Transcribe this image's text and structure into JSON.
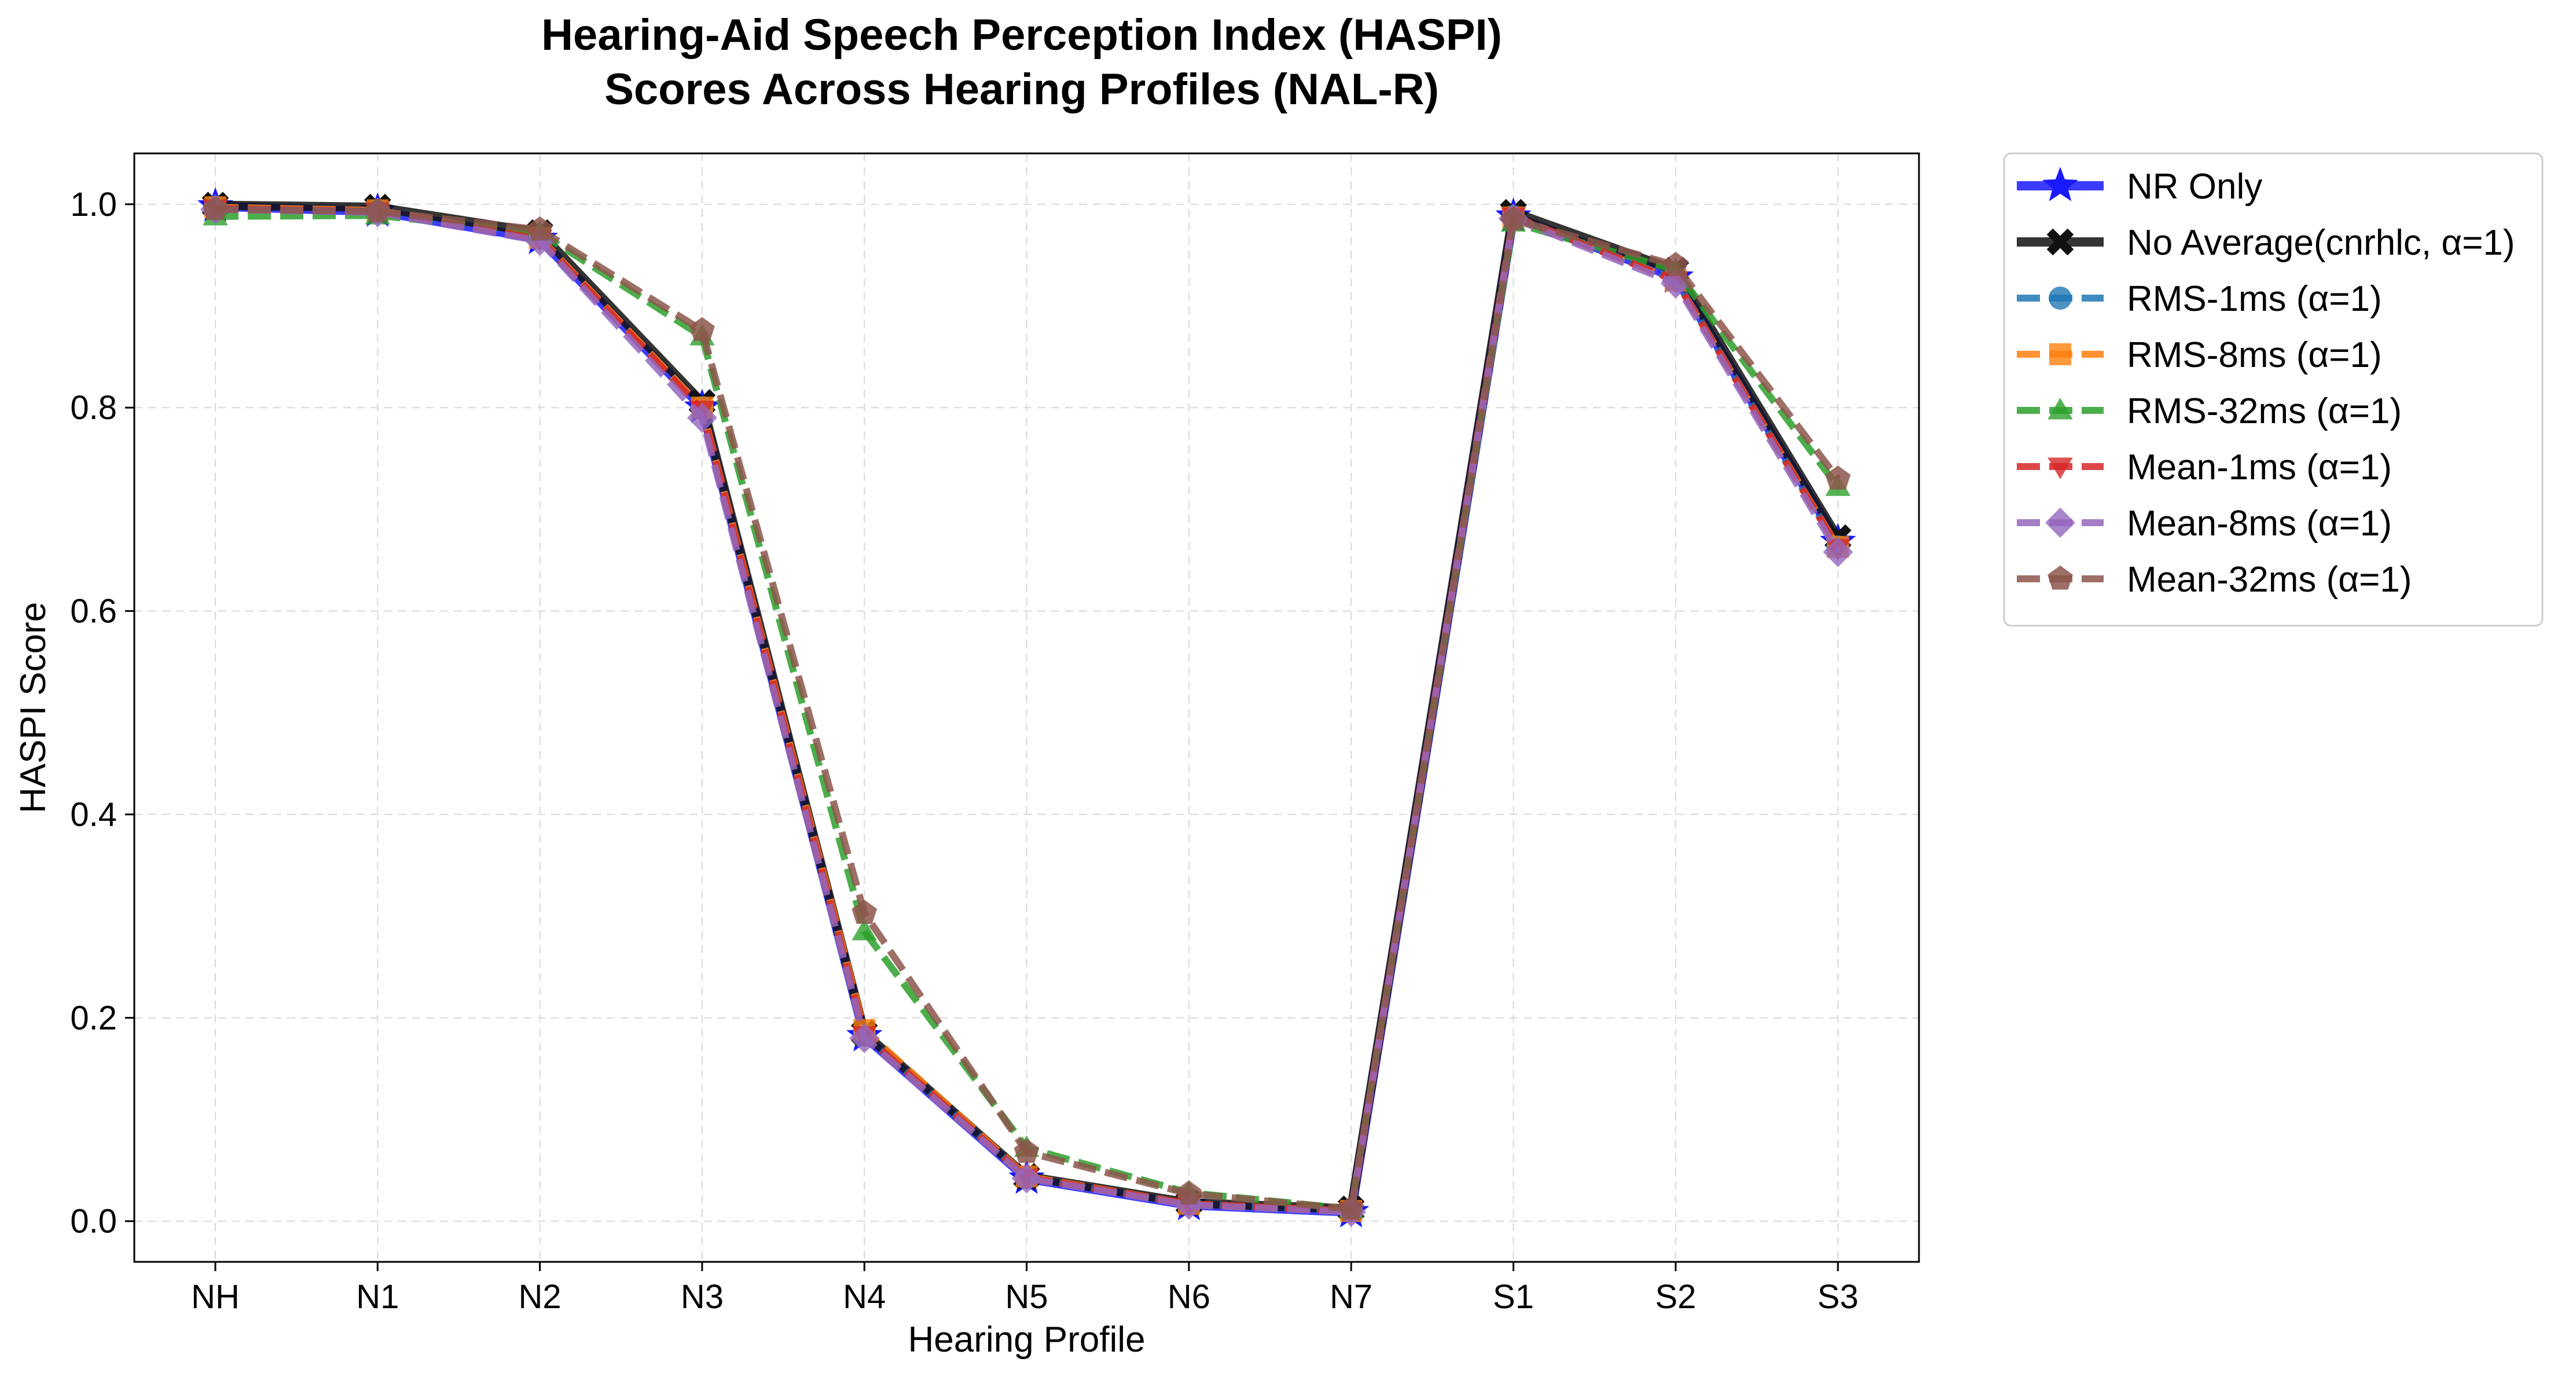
{
  "chart_data": {
    "type": "line",
    "title": [
      "Hearing-Aid Speech Perception Index (HASPI)",
      "Scores Across Hearing Profiles (NAL-R)"
    ],
    "xlabel": "Hearing Profile",
    "ylabel": "HASPI Score",
    "categories": [
      "NH",
      "N1",
      "N2",
      "N3",
      "N4",
      "N5",
      "N6",
      "N7",
      "S1",
      "S2",
      "S3"
    ],
    "ylim": [
      -0.04,
      1.05
    ],
    "yticks": [
      "0.0",
      "0.2",
      "0.4",
      "0.6",
      "0.8",
      "1.0"
    ],
    "grid": true,
    "legend_position": "outside-right",
    "series": [
      {
        "name": "NR Only",
        "color": "#1a1aff",
        "marker": "star",
        "dash": "solid",
        "width": 16,
        "values": [
          0.998,
          0.993,
          0.966,
          0.8,
          0.182,
          0.042,
          0.016,
          0.009,
          0.988,
          0.928,
          0.668
        ]
      },
      {
        "name": "No Average(cnrhlc, α=1)",
        "color": "#111111",
        "marker": "x",
        "dash": "solid",
        "width": 16,
        "values": [
          0.999,
          0.997,
          0.972,
          0.805,
          0.185,
          0.044,
          0.018,
          0.012,
          0.992,
          0.935,
          0.672
        ]
      },
      {
        "name": "RMS-1ms (α=1)",
        "color": "#1f77b4",
        "marker": "circle",
        "dash": "dashed",
        "width": 12,
        "values": [
          0.997,
          0.994,
          0.967,
          0.8,
          0.183,
          0.043,
          0.017,
          0.01,
          0.988,
          0.926,
          0.663
        ]
      },
      {
        "name": "RMS-8ms (α=1)",
        "color": "#ff7f0e",
        "marker": "square",
        "dash": "dashed",
        "width": 12,
        "values": [
          0.997,
          0.994,
          0.967,
          0.8,
          0.188,
          0.044,
          0.017,
          0.01,
          0.987,
          0.925,
          0.663
        ]
      },
      {
        "name": "RMS-32ms (α=1)",
        "color": "#2ca02c",
        "marker": "triangle-up",
        "dash": "dashed",
        "width": 12,
        "values": [
          0.988,
          0.989,
          0.972,
          0.87,
          0.285,
          0.072,
          0.028,
          0.012,
          0.982,
          0.935,
          0.722
        ]
      },
      {
        "name": "Mean-1ms (α=1)",
        "color": "#d62728",
        "marker": "triangle-down",
        "dash": "dashed",
        "width": 12,
        "values": [
          0.996,
          0.993,
          0.966,
          0.798,
          0.183,
          0.043,
          0.017,
          0.01,
          0.988,
          0.925,
          0.662
        ]
      },
      {
        "name": "Mean-8ms (α=1)",
        "color": "#9467bd",
        "marker": "diamond",
        "dash": "dashed",
        "width": 12,
        "values": [
          0.995,
          0.992,
          0.964,
          0.79,
          0.18,
          0.042,
          0.016,
          0.009,
          0.986,
          0.922,
          0.658
        ]
      },
      {
        "name": "Mean-32ms (α=1)",
        "color": "#8c564b",
        "marker": "pentagon",
        "dash": "dashed",
        "width": 12,
        "values": [
          0.995,
          0.993,
          0.975,
          0.876,
          0.303,
          0.068,
          0.027,
          0.012,
          0.985,
          0.94,
          0.73
        ]
      }
    ]
  }
}
